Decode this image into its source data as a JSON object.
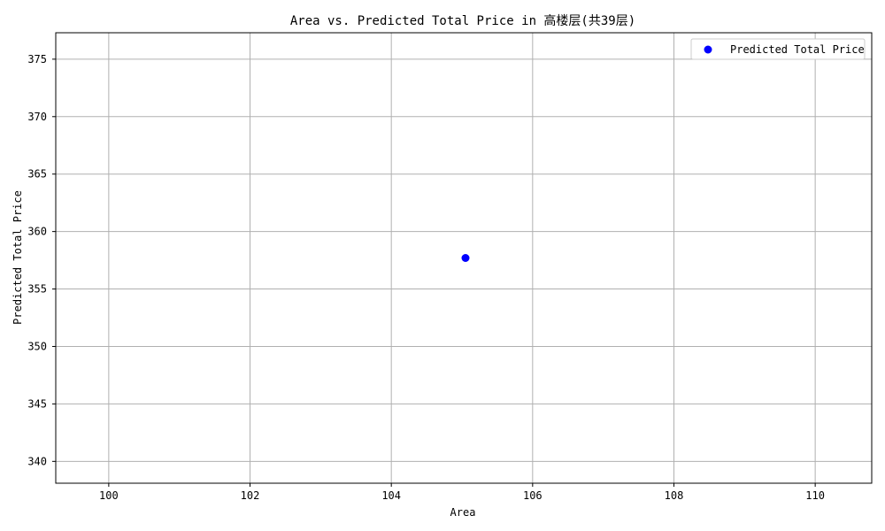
{
  "chart_data": {
    "type": "scatter",
    "title": "Area vs. Predicted Total Price in 高楼层(共39层)",
    "xlabel": "Area",
    "ylabel": "Predicted Total Price",
    "xlim": [
      99.25,
      110.8
    ],
    "ylim": [
      338.1,
      377.3
    ],
    "xticks": [
      100,
      102,
      104,
      106,
      108,
      110
    ],
    "yticks": [
      340,
      345,
      350,
      355,
      360,
      365,
      370,
      375
    ],
    "grid": true,
    "legend_position": "top-right",
    "series": [
      {
        "name": "Predicted Total Price",
        "color": "#0000ff",
        "points": [
          {
            "x": 105.05,
            "y": 357.7
          }
        ]
      }
    ]
  }
}
